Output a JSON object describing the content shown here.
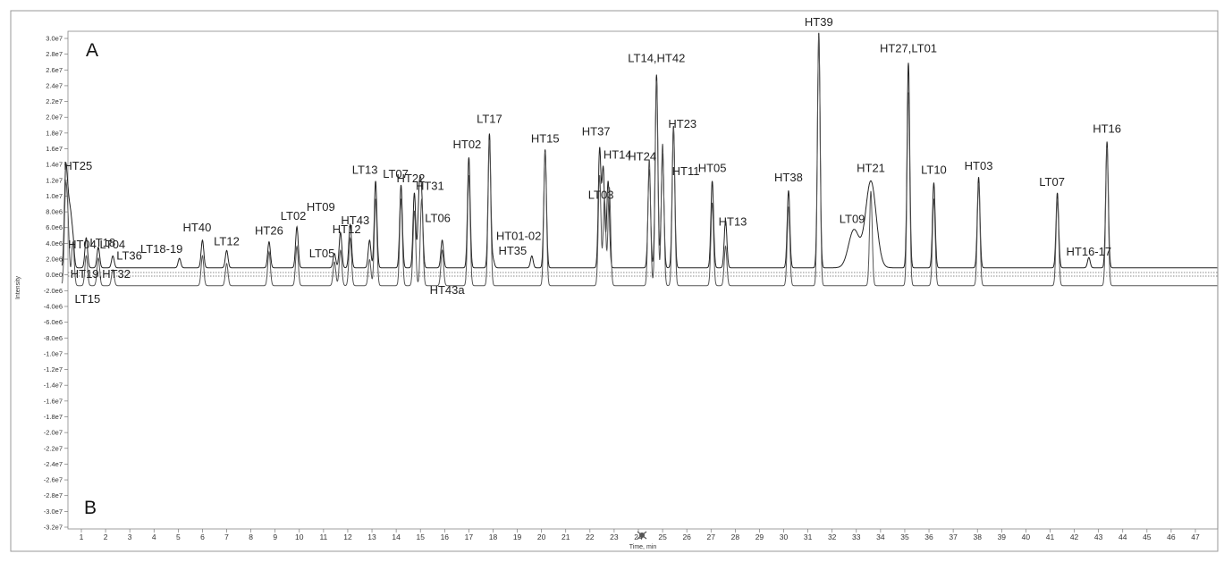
{
  "chart_data": {
    "type": "line",
    "panels": [
      {
        "name": "A",
        "direction": "up"
      },
      {
        "name": "B",
        "direction": "down"
      }
    ],
    "xlabel": "Time, min",
    "ylabel": "Intensity",
    "xlim": [
      0,
      48
    ],
    "ylim": [
      -32000000,
      30000000
    ],
    "x_ticks": [
      "1",
      "2",
      "3",
      "4",
      "5",
      "6",
      "7",
      "8",
      "9",
      "10",
      "11",
      "12",
      "13",
      "14",
      "15",
      "16",
      "17",
      "18",
      "19",
      "20",
      "21",
      "22",
      "23",
      "24",
      "25",
      "26",
      "27",
      "28",
      "29",
      "30",
      "31",
      "32",
      "33",
      "34",
      "35",
      "36",
      "37",
      "38",
      "39",
      "40",
      "41",
      "42",
      "43",
      "44",
      "45",
      "46",
      "47"
    ],
    "y_ticks": [
      "3.0e7",
      "2.8e7",
      "2.6e7",
      "2.4e7",
      "2.2e7",
      "2.0e7",
      "1.8e7",
      "1.6e7",
      "1.4e7",
      "1.2e7",
      "1.0e7",
      "8.0e6",
      "6.0e6",
      "4.0e6",
      "2.0e6",
      "0.0e0",
      "-2.0e6",
      "-4.0e6",
      "-6.0e6",
      "-8.0e6",
      "-1.0e7",
      "-1.2e7",
      "-1.4e7",
      "-1.6e7",
      "-1.8e7",
      "-2.0e7",
      "-2.2e7",
      "-2.4e7",
      "-2.6e7",
      "-2.8e7",
      "-3.0e7",
      "-3.2e7"
    ],
    "series": [
      {
        "name": "A",
        "peaks": [
          {
            "label": "HT25",
            "x": 0.35,
            "y": 11500000
          },
          {
            "label": "HT04,LT04",
            "x": 0.45,
            "y": 7000000
          },
          {
            "label": "HT19,HT32",
            "x": 0.55,
            "y": 5500000
          },
          {
            "label": "LT15",
            "x": 0.65,
            "y": 3500000
          },
          {
            "label": "LT18",
            "x": 1.2,
            "y": 3800000
          },
          {
            "label": "",
            "x": 1.7,
            "y": 2600000
          },
          {
            "label": "LT36",
            "x": 2.3,
            "y": 1500000
          },
          {
            "label": "LT18-19",
            "x": 5.05,
            "y": 1200000
          },
          {
            "label": "HT40",
            "x": 6.0,
            "y": 3500000
          },
          {
            "label": "LT12",
            "x": 7.0,
            "y": 2200000
          },
          {
            "label": "HT26",
            "x": 8.75,
            "y": 3300000
          },
          {
            "label": "LT02",
            "x": 9.9,
            "y": 5200000
          },
          {
            "label": "LT05",
            "x": 11.45,
            "y": 1800000
          },
          {
            "label": "HT09",
            "x": 11.7,
            "y": 4500000
          },
          {
            "label": "HT12",
            "x": 12.1,
            "y": 5500000
          },
          {
            "label": "HT43",
            "x": 12.9,
            "y": 3500000
          },
          {
            "label": "LT13",
            "x": 13.15,
            "y": 11000000
          },
          {
            "label": "LT07",
            "x": 14.2,
            "y": 10500000
          },
          {
            "label": "HT22",
            "x": 14.75,
            "y": 9500000
          },
          {
            "label": "HT31",
            "x": 14.95,
            "y": 9000000
          },
          {
            "label": "LT06",
            "x": 15.05,
            "y": 8500000
          },
          {
            "label": "HT43a",
            "x": 15.9,
            "y": 3500000
          },
          {
            "label": "HT02",
            "x": 17.0,
            "y": 14000000
          },
          {
            "label": "LT17",
            "x": 17.85,
            "y": 17000000
          },
          {
            "label": "HT35",
            "x": 18.0,
            "y": 1000000
          },
          {
            "label": "HT01-02",
            "x": 19.6,
            "y": 1500000
          },
          {
            "label": "HT15",
            "x": 20.15,
            "y": 15000000
          },
          {
            "label": "HT37",
            "x": 22.4,
            "y": 15000000
          },
          {
            "label": "HT14",
            "x": 22.55,
            "y": 12500000
          },
          {
            "label": "LT03",
            "x": 22.75,
            "y": 11000000
          },
          {
            "label": "HT24",
            "x": 24.45,
            "y": 12500000
          },
          {
            "label": "LT14,HT42",
            "x": 24.75,
            "y": 24500000
          },
          {
            "label": "HT11",
            "x": 25.0,
            "y": 14500000
          },
          {
            "label": "HT23",
            "x": 25.45,
            "y": 18000000
          },
          {
            "label": "HT05",
            "x": 27.05,
            "y": 11000000
          },
          {
            "label": "HT13",
            "x": 27.6,
            "y": 6000000
          },
          {
            "label": "HT38",
            "x": 30.2,
            "y": 9800000
          },
          {
            "label": "HT39",
            "x": 31.45,
            "y": 29800000
          },
          {
            "label": "LT09",
            "x": 32.9,
            "y": 4800000
          },
          {
            "label": "HT21",
            "x": 33.6,
            "y": 11000000
          },
          {
            "label": "HT27,LT01",
            "x": 35.15,
            "y": 26000000
          },
          {
            "label": "LT10",
            "x": 36.2,
            "y": 10800000
          },
          {
            "label": "HT03",
            "x": 38.05,
            "y": 11500000
          },
          {
            "label": "LT07",
            "x": 41.3,
            "y": 9500000
          },
          {
            "label": "HT16-17",
            "x": 42.6,
            "y": 1300000
          },
          {
            "label": "HT16",
            "x": 43.35,
            "y": 16000000
          }
        ]
      },
      {
        "name": "B",
        "peaks": [
          {
            "label": "",
            "x": 0.35,
            "y": -11500000
          },
          {
            "label": "",
            "x": 0.45,
            "y": -7000000
          },
          {
            "label": "",
            "x": 0.65,
            "y": -5500000
          },
          {
            "label": "",
            "x": 1.2,
            "y": -3800000
          },
          {
            "label": "",
            "x": 1.7,
            "y": -3500000
          },
          {
            "label": "",
            "x": 2.3,
            "y": -2000000
          },
          {
            "label": "",
            "x": 6.0,
            "y": -3800000
          },
          {
            "label": "",
            "x": 7.0,
            "y": -2800000
          },
          {
            "label": "",
            "x": 8.75,
            "y": -4300000
          },
          {
            "label": "",
            "x": 9.9,
            "y": -5000000
          },
          {
            "label": "",
            "x": 11.45,
            "y": -3000000
          },
          {
            "label": "",
            "x": 11.7,
            "y": -4500000
          },
          {
            "label": "",
            "x": 12.1,
            "y": -6000000
          },
          {
            "label": "",
            "x": 12.9,
            "y": -3300000
          },
          {
            "label": "",
            "x": 13.15,
            "y": -11000000
          },
          {
            "label": "",
            "x": 14.2,
            "y": -11000000
          },
          {
            "label": "",
            "x": 14.75,
            "y": -9500000
          },
          {
            "label": "",
            "x": 15.05,
            "y": -11000000
          },
          {
            "label": "",
            "x": 15.9,
            "y": -4500000
          },
          {
            "label": "",
            "x": 17.0,
            "y": -14000000
          },
          {
            "label": "",
            "x": 17.85,
            "y": -18500000
          },
          {
            "label": "",
            "x": 20.15,
            "y": -17000000
          },
          {
            "label": "",
            "x": 22.4,
            "y": -14000000
          },
          {
            "label": "",
            "x": 22.6,
            "y": -11000000
          },
          {
            "label": "",
            "x": 22.8,
            "y": -12500000
          },
          {
            "label": "",
            "x": 24.45,
            "y": -16000000
          },
          {
            "label": "",
            "x": 24.75,
            "y": -26000000
          },
          {
            "label": "",
            "x": 25.0,
            "y": -18000000
          },
          {
            "label": "",
            "x": 25.45,
            "y": -20000000
          },
          {
            "label": "",
            "x": 27.05,
            "y": -10500000
          },
          {
            "label": "",
            "x": 27.6,
            "y": -5000000
          },
          {
            "label": "",
            "x": 30.2,
            "y": -10000000
          },
          {
            "label": "",
            "x": 31.45,
            "y": -31800000
          },
          {
            "label": "",
            "x": 33.6,
            "y": -12000000
          },
          {
            "label": "",
            "x": 35.15,
            "y": -24500000
          },
          {
            "label": "",
            "x": 36.2,
            "y": -11000000
          },
          {
            "label": "",
            "x": 38.05,
            "y": -13000000
          },
          {
            "label": "",
            "x": 41.3,
            "y": -11000000
          },
          {
            "label": "",
            "x": 43.35,
            "y": -17500000
          }
        ]
      }
    ]
  }
}
